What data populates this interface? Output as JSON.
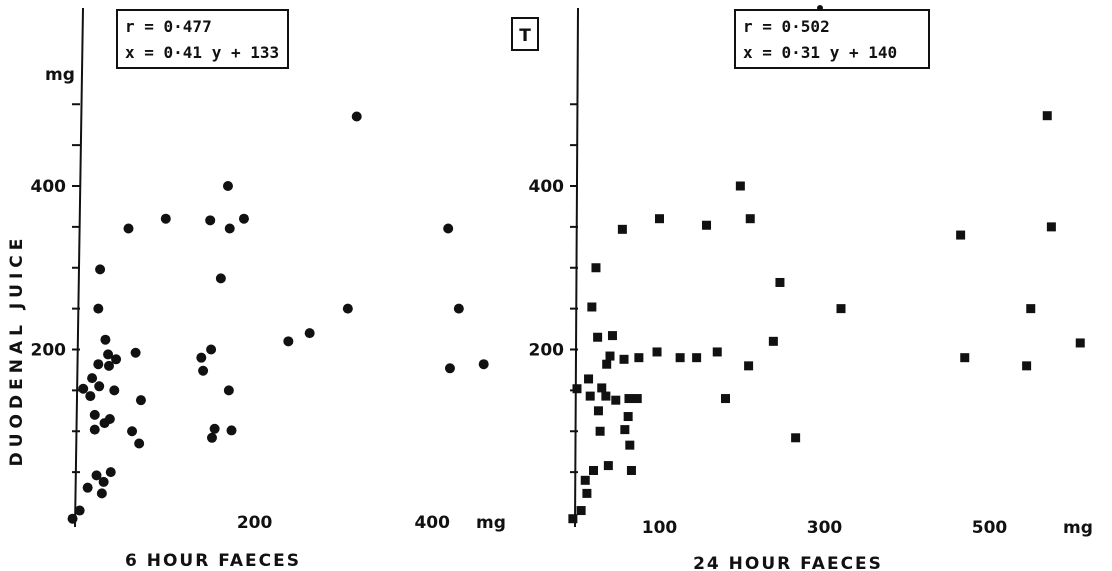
{
  "figure": {
    "ylabel": "DUODENAL JUICE",
    "y_unit": "mg",
    "tag": "T"
  },
  "chart_data": [
    {
      "type": "scatter",
      "xlabel": "6 HOUR FAECES",
      "x_unit": "mg",
      "ylabel": "DUODENAL JUICE",
      "y_unit": "mg",
      "xlim": [
        0,
        470
      ],
      "ylim": [
        0,
        520
      ],
      "x_ticks": [
        200,
        400
      ],
      "y_ticks": [
        200,
        400
      ],
      "grid": false,
      "marker": "circle",
      "annotation": [
        "r = 0·477",
        "x = 0·41 y + 133"
      ],
      "points": [
        [
          -5,
          -7
        ],
        [
          3,
          3
        ],
        [
          7,
          152
        ],
        [
          12,
          31
        ],
        [
          15,
          143
        ],
        [
          17,
          165
        ],
        [
          20,
          120
        ],
        [
          20,
          102
        ],
        [
          22,
          46
        ],
        [
          24,
          182
        ],
        [
          24,
          250
        ],
        [
          25,
          155
        ],
        [
          26,
          298
        ],
        [
          28,
          24
        ],
        [
          30,
          38
        ],
        [
          31,
          110
        ],
        [
          32,
          212
        ],
        [
          35,
          194
        ],
        [
          36,
          180
        ],
        [
          37,
          115
        ],
        [
          38,
          50
        ],
        [
          42,
          150
        ],
        [
          44,
          188
        ],
        [
          58,
          348
        ],
        [
          62,
          100
        ],
        [
          66,
          196
        ],
        [
          70,
          85
        ],
        [
          72,
          138
        ],
        [
          100,
          360
        ],
        [
          140,
          190
        ],
        [
          142,
          174
        ],
        [
          150,
          358
        ],
        [
          151,
          200
        ],
        [
          152,
          92
        ],
        [
          155,
          103
        ],
        [
          162,
          287
        ],
        [
          170,
          400
        ],
        [
          171,
          150
        ],
        [
          172,
          348
        ],
        [
          174,
          101
        ],
        [
          188,
          360
        ],
        [
          238,
          210
        ],
        [
          262,
          220
        ],
        [
          305,
          250
        ],
        [
          315,
          485
        ],
        [
          418,
          348
        ],
        [
          420,
          177
        ],
        [
          430,
          250
        ],
        [
          458,
          182
        ]
      ]
    },
    {
      "type": "scatter",
      "xlabel": "24 HOUR FAECES",
      "x_unit": "mg",
      "ylabel": "DUODENAL JUICE",
      "y_unit": "mg",
      "xlim": [
        0,
        620
      ],
      "ylim": [
        0,
        520
      ],
      "x_ticks": [
        100,
        300,
        500
      ],
      "y_ticks": [
        200,
        400
      ],
      "grid": false,
      "marker": "square",
      "annotation": [
        "r = 0·502",
        "x = 0·31 y + 140"
      ],
      "points": [
        [
          -5,
          -7
        ],
        [
          5,
          3
        ],
        [
          0,
          152
        ],
        [
          10,
          40
        ],
        [
          12,
          24
        ],
        [
          14,
          164
        ],
        [
          16,
          143
        ],
        [
          18,
          252
        ],
        [
          20,
          52
        ],
        [
          23,
          300
        ],
        [
          25,
          215
        ],
        [
          26,
          125
        ],
        [
          28,
          100
        ],
        [
          30,
          153
        ],
        [
          35,
          143
        ],
        [
          36,
          182
        ],
        [
          38,
          58
        ],
        [
          40,
          192
        ],
        [
          43,
          217
        ],
        [
          47,
          138
        ],
        [
          55,
          347
        ],
        [
          57,
          188
        ],
        [
          58,
          102
        ],
        [
          62,
          118
        ],
        [
          63,
          140
        ],
        [
          64,
          83
        ],
        [
          66,
          52
        ],
        [
          73,
          140
        ],
        [
          75,
          190
        ],
        [
          97,
          197
        ],
        [
          100,
          360
        ],
        [
          125,
          190
        ],
        [
          145,
          190
        ],
        [
          157,
          352
        ],
        [
          170,
          197
        ],
        [
          180,
          140
        ],
        [
          198,
          400
        ],
        [
          208,
          180
        ],
        [
          210,
          360
        ],
        [
          238,
          210
        ],
        [
          246,
          282
        ],
        [
          265,
          92
        ],
        [
          320,
          250
        ],
        [
          465,
          340
        ],
        [
          470,
          190
        ],
        [
          545,
          180
        ],
        [
          550,
          250
        ],
        [
          570,
          486
        ],
        [
          575,
          350
        ],
        [
          610,
          208
        ]
      ]
    }
  ]
}
